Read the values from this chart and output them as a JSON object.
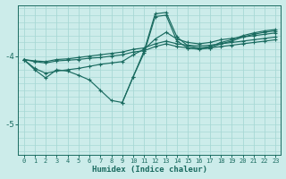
{
  "xlabel": "Humidex (Indice chaleur)",
  "bg_color": "#ccecea",
  "grid_color": "#a8d8d5",
  "line_color": "#1a6b60",
  "xlim_min": -0.5,
  "xlim_max": 23.5,
  "ylim_min": -5.45,
  "ylim_max": -3.25,
  "yticks": [
    -5.0,
    -4.0
  ],
  "xticks": [
    0,
    1,
    2,
    3,
    4,
    5,
    6,
    7,
    8,
    9,
    10,
    11,
    12,
    13,
    14,
    15,
    16,
    17,
    18,
    19,
    20,
    21,
    22,
    23
  ],
  "lines": [
    {
      "x": [
        0,
        1,
        2,
        3,
        4,
        5,
        6,
        7,
        8,
        9,
        10,
        11,
        12,
        13,
        14,
        15,
        16,
        17,
        18,
        19,
        20,
        21,
        22,
        23
      ],
      "y": [
        -4.05,
        -4.07,
        -4.08,
        -4.05,
        -4.04,
        -4.02,
        -4.0,
        -3.98,
        -3.96,
        -3.94,
        -3.9,
        -3.88,
        -3.82,
        -3.78,
        -3.82,
        -3.84,
        -3.85,
        -3.84,
        -3.82,
        -3.8,
        -3.78,
        -3.76,
        -3.74,
        -3.72
      ]
    },
    {
      "x": [
        0,
        1,
        2,
        3,
        4,
        5,
        6,
        7,
        8,
        9,
        10,
        11,
        12,
        13,
        14,
        15,
        16,
        17,
        18,
        19,
        20,
        21,
        22,
        23
      ],
      "y": [
        -4.05,
        -4.08,
        -4.1,
        -4.07,
        -4.06,
        -4.05,
        -4.03,
        -4.02,
        -4.0,
        -3.98,
        -3.94,
        -3.92,
        -3.86,
        -3.82,
        -3.86,
        -3.88,
        -3.89,
        -3.88,
        -3.86,
        -3.84,
        -3.82,
        -3.8,
        -3.78,
        -3.76
      ]
    },
    {
      "x": [
        0,
        1,
        2,
        3,
        4,
        5,
        6,
        7,
        8,
        9,
        10,
        11,
        12,
        13,
        14,
        15,
        16,
        17,
        18,
        19,
        20,
        21,
        22,
        23
      ],
      "y": [
        -4.05,
        -4.18,
        -4.25,
        -4.22,
        -4.2,
        -4.18,
        -4.15,
        -4.12,
        -4.1,
        -4.08,
        -3.98,
        -3.9,
        -3.75,
        -3.65,
        -3.75,
        -3.8,
        -3.82,
        -3.8,
        -3.76,
        -3.74,
        -3.72,
        -3.7,
        -3.68,
        -3.66
      ]
    },
    {
      "x": [
        0,
        1,
        2,
        3,
        4,
        5,
        6,
        7,
        8,
        9,
        10,
        11,
        12,
        13,
        14,
        15,
        16,
        17,
        18,
        19,
        20,
        21,
        22,
        23
      ],
      "y": [
        -4.05,
        -4.2,
        -4.32,
        -4.2,
        -4.22,
        -4.28,
        -4.35,
        -4.5,
        -4.65,
        -4.68,
        -4.3,
        -3.95,
        -3.42,
        -3.4,
        -3.78,
        -3.88,
        -3.9,
        -3.88,
        -3.82,
        -3.78,
        -3.72,
        -3.68,
        -3.65,
        -3.63
      ]
    }
  ],
  "spike_line": {
    "x": [
      9,
      10,
      11,
      12,
      13,
      14,
      15,
      16,
      17,
      18,
      19,
      20,
      21,
      22,
      23
    ],
    "y": [
      -4.68,
      -4.3,
      -3.92,
      -3.38,
      -3.36,
      -3.72,
      -3.85,
      -3.88,
      -3.86,
      -3.8,
      -3.76,
      -3.7,
      -3.66,
      -3.63,
      -3.61
    ]
  }
}
